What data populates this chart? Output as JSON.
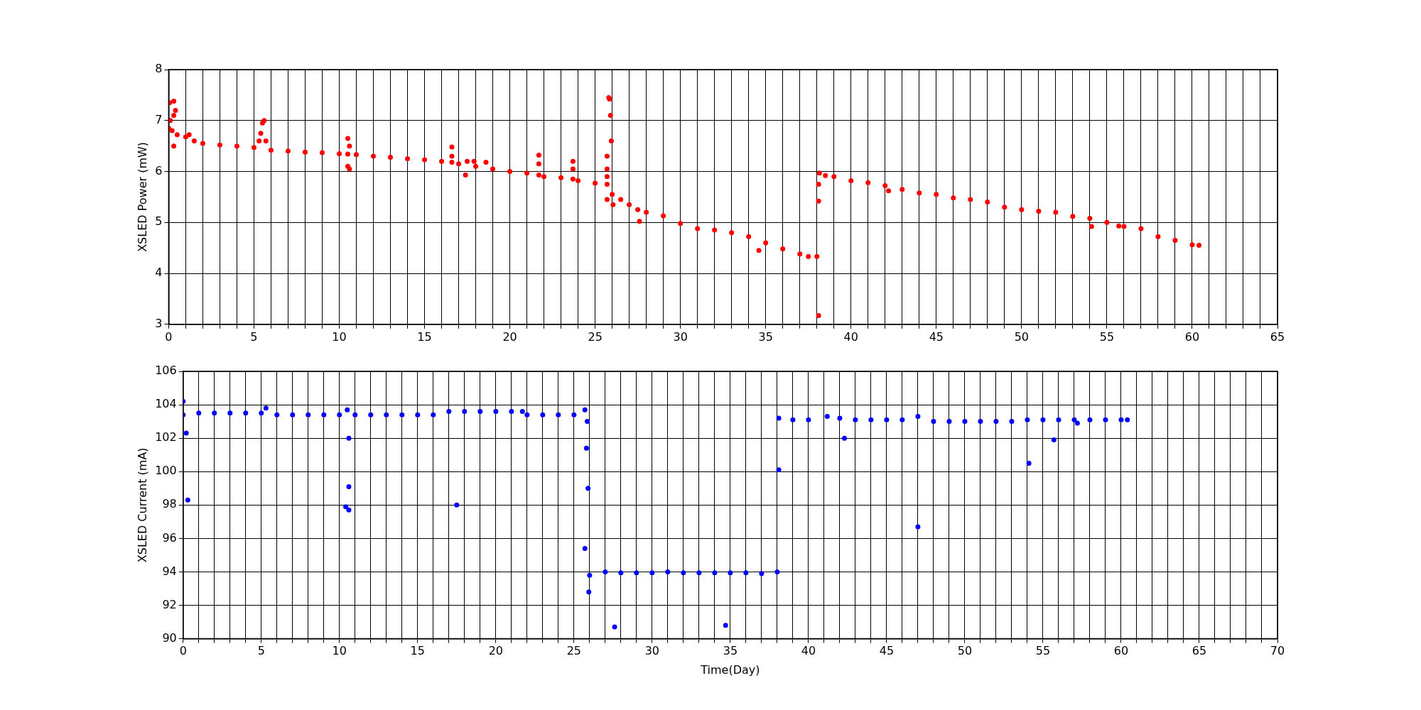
{
  "chart_data": [
    {
      "type": "scatter",
      "ylabel": "XSLED Power (mW)",
      "marker": "circle",
      "grid": true,
      "legend": false,
      "xlim": [
        0,
        65
      ],
      "ylim": [
        3,
        8
      ],
      "yticks": [
        3,
        4,
        5,
        6,
        7,
        8
      ],
      "xticks": [
        0,
        {
          "value": 1,
          "label": null
        },
        {
          "value": 2,
          "label": null
        },
        {
          "value": 3,
          "label": null
        },
        {
          "value": 4,
          "label": null
        },
        5,
        {
          "value": 6,
          "label": null
        },
        {
          "value": 7,
          "label": null
        },
        {
          "value": 8,
          "label": null
        },
        {
          "value": 9,
          "label": null
        },
        10,
        {
          "value": 11,
          "label": null
        },
        {
          "value": 12,
          "label": null
        },
        {
          "value": 13,
          "label": null
        },
        {
          "value": 14,
          "label": null
        },
        15,
        {
          "value": 16,
          "label": null
        },
        {
          "value": 17,
          "label": null
        },
        {
          "value": 18,
          "label": null
        },
        {
          "value": 19,
          "label": null
        },
        20,
        {
          "value": 21,
          "label": null
        },
        {
          "value": 22,
          "label": null
        },
        {
          "value": 23,
          "label": null
        },
        {
          "value": 24,
          "label": null
        },
        25,
        {
          "value": 26,
          "label": null
        },
        {
          "value": 27,
          "label": null
        },
        {
          "value": 28,
          "label": null
        },
        {
          "value": 29,
          "label": null
        },
        30,
        {
          "value": 31,
          "label": null
        },
        {
          "value": 32,
          "label": null
        },
        {
          "value": 33,
          "label": null
        },
        {
          "value": 34,
          "label": null
        },
        35,
        {
          "value": 36,
          "label": null
        },
        {
          "value": 37,
          "label": null
        },
        {
          "value": 38,
          "label": null
        },
        {
          "value": 39,
          "label": null
        },
        40,
        {
          "value": 41,
          "label": null
        },
        {
          "value": 42,
          "label": null
        },
        {
          "value": 43,
          "label": null
        },
        {
          "value": 44,
          "label": null
        },
        45,
        {
          "value": 46,
          "label": null
        },
        {
          "value": 47,
          "label": null
        },
        {
          "value": 48,
          "label": null
        },
        {
          "value": 49,
          "label": null
        },
        50,
        {
          "value": 51,
          "label": null
        },
        {
          "value": 52,
          "label": null
        },
        {
          "value": 53,
          "label": null
        },
        {
          "value": 54,
          "label": null
        },
        55,
        {
          "value": 56,
          "label": null
        },
        {
          "value": 57,
          "label": null
        },
        {
          "value": 58,
          "label": null
        },
        {
          "value": 59,
          "label": null
        },
        60,
        {
          "value": 61,
          "label": null
        },
        {
          "value": 62,
          "label": null
        },
        {
          "value": 63,
          "label": null
        },
        {
          "value": 64,
          "label": null
        },
        65
      ],
      "series": [
        {
          "color": "#ff0000",
          "x": [
            0,
            0.05,
            0.1,
            0.2,
            0.3,
            0.3,
            0.3,
            0.4,
            0.5,
            1,
            1.2,
            1.5,
            2,
            3,
            4,
            5,
            5.3,
            5.4,
            5.5,
            5.6,
            5.7,
            6,
            7,
            8,
            9,
            10,
            10.5,
            10.6,
            10.5,
            10.6,
            10.5,
            11,
            12,
            13,
            14,
            15,
            16,
            16.6,
            16.6,
            16.6,
            17,
            17.4,
            17.5,
            17.9,
            18,
            18.6,
            19,
            20,
            21,
            21.7,
            21.7,
            21.7,
            22,
            23,
            23.7,
            23.7,
            23.7,
            24,
            25,
            25.7,
            25.7,
            25.7,
            25.7,
            25.8,
            25.85,
            25.9,
            25.95,
            25.7,
            26,
            26.05,
            26.5,
            27,
            27.5,
            27.6,
            28,
            29,
            30,
            31,
            32,
            33,
            34,
            34.6,
            35,
            36,
            37,
            37.5,
            38,
            38.1,
            38.1,
            38.1,
            38.15,
            38.5,
            39,
            40,
            41,
            42,
            42.2,
            43,
            44,
            45,
            46,
            47,
            48,
            49,
            50,
            51,
            52,
            53,
            54,
            54.1,
            55,
            55.7,
            56,
            57,
            58,
            59,
            60,
            60.4
          ],
          "values": [
            6.85,
            7.35,
            7.0,
            6.8,
            7.38,
            7.1,
            6.5,
            7.2,
            6.72,
            6.68,
            6.72,
            6.6,
            6.55,
            6.52,
            6.5,
            6.47,
            6.6,
            6.75,
            6.95,
            7.0,
            6.6,
            6.42,
            6.4,
            6.38,
            6.37,
            6.35,
            6.34,
            6.5,
            6.65,
            6.05,
            6.1,
            6.33,
            6.3,
            6.28,
            6.25,
            6.23,
            6.2,
            6.18,
            6.48,
            6.3,
            6.15,
            5.93,
            6.2,
            6.2,
            6.1,
            6.18,
            6.05,
            6.0,
            5.97,
            5.93,
            6.32,
            6.15,
            5.9,
            5.88,
            5.85,
            6.2,
            6.05,
            5.82,
            5.77,
            5.75,
            6.3,
            6.05,
            5.9,
            7.45,
            7.42,
            7.1,
            6.6,
            5.45,
            5.55,
            5.35,
            5.45,
            5.35,
            5.25,
            5.02,
            5.2,
            5.13,
            4.98,
            4.88,
            4.85,
            4.8,
            4.72,
            4.45,
            4.6,
            4.48,
            4.38,
            4.33,
            4.33,
            3.17,
            5.42,
            5.75,
            5.97,
            5.92,
            5.9,
            5.82,
            5.78,
            5.72,
            5.62,
            5.65,
            5.58,
            5.55,
            5.48,
            5.45,
            5.4,
            5.3,
            5.25,
            5.22,
            5.2,
            5.12,
            5.08,
            4.92,
            5.0,
            4.93,
            4.92,
            4.88,
            4.72,
            4.65,
            4.56,
            4.55
          ]
        }
      ]
    },
    {
      "type": "scatter",
      "ylabel": "XSLED Current (mA)",
      "xlabel": "Time(Day)",
      "marker": "circle",
      "grid": true,
      "legend": false,
      "xlim": [
        0,
        70
      ],
      "ylim": [
        90,
        106
      ],
      "yticks": [
        90,
        92,
        94,
        96,
        98,
        100,
        102,
        104,
        106
      ],
      "xticks": [
        0,
        {
          "value": 1,
          "label": null
        },
        {
          "value": 2,
          "label": null
        },
        {
          "value": 3,
          "label": null
        },
        {
          "value": 4,
          "label": null
        },
        5,
        {
          "value": 6,
          "label": null
        },
        {
          "value": 7,
          "label": null
        },
        {
          "value": 8,
          "label": null
        },
        {
          "value": 9,
          "label": null
        },
        10,
        {
          "value": 11,
          "label": null
        },
        {
          "value": 12,
          "label": null
        },
        {
          "value": 13,
          "label": null
        },
        {
          "value": 14,
          "label": null
        },
        15,
        {
          "value": 16,
          "label": null
        },
        {
          "value": 17,
          "label": null
        },
        {
          "value": 18,
          "label": null
        },
        {
          "value": 19,
          "label": null
        },
        20,
        {
          "value": 21,
          "label": null
        },
        {
          "value": 22,
          "label": null
        },
        {
          "value": 23,
          "label": null
        },
        {
          "value": 24,
          "label": null
        },
        25,
        {
          "value": 26,
          "label": null
        },
        {
          "value": 27,
          "label": null
        },
        {
          "value": 28,
          "label": null
        },
        {
          "value": 29,
          "label": null
        },
        30,
        {
          "value": 31,
          "label": null
        },
        {
          "value": 32,
          "label": null
        },
        {
          "value": 33,
          "label": null
        },
        {
          "value": 34,
          "label": null
        },
        35,
        {
          "value": 36,
          "label": null
        },
        {
          "value": 37,
          "label": null
        },
        {
          "value": 38,
          "label": null
        },
        {
          "value": 39,
          "label": null
        },
        40,
        {
          "value": 41,
          "label": null
        },
        {
          "value": 42,
          "label": null
        },
        {
          "value": 43,
          "label": null
        },
        {
          "value": 44,
          "label": null
        },
        45,
        {
          "value": 46,
          "label": null
        },
        {
          "value": 47,
          "label": null
        },
        {
          "value": 48,
          "label": null
        },
        {
          "value": 49,
          "label": null
        },
        50,
        {
          "value": 51,
          "label": null
        },
        {
          "value": 52,
          "label": null
        },
        {
          "value": 53,
          "label": null
        },
        {
          "value": 54,
          "label": null
        },
        55,
        {
          "value": 56,
          "label": null
        },
        {
          "value": 57,
          "label": null
        },
        {
          "value": 58,
          "label": null
        },
        {
          "value": 59,
          "label": null
        },
        60,
        {
          "value": 61,
          "label": null
        },
        {
          "value": 62,
          "label": null
        },
        {
          "value": 63,
          "label": null
        },
        {
          "value": 64,
          "label": null
        },
        65,
        {
          "value": 66,
          "label": null
        },
        {
          "value": 67,
          "label": null
        },
        {
          "value": 68,
          "label": null
        },
        {
          "value": 69,
          "label": null
        },
        70
      ],
      "series": [
        {
          "color": "#0000ff",
          "x": [
            0,
            0,
            0.2,
            0.3,
            1,
            2,
            3,
            4,
            5,
            5.3,
            6,
            7,
            8,
            9,
            10,
            10.5,
            10.6,
            10.6,
            10.4,
            10.6,
            11,
            12,
            13,
            14,
            15,
            16,
            17,
            17.5,
            18,
            19,
            20,
            21,
            21.7,
            22,
            23,
            24,
            25,
            25.7,
            25.85,
            25.8,
            25.9,
            25.7,
            25.95,
            26,
            27,
            27.6,
            28,
            29,
            30,
            31,
            32,
            33,
            34,
            34.7,
            35,
            36,
            37,
            38,
            38.1,
            38.1,
            39,
            40,
            41.2,
            42,
            42.3,
            43,
            44,
            45,
            46,
            47,
            47,
            48,
            49,
            50,
            51,
            52,
            53,
            54,
            54.1,
            55,
            55.7,
            56,
            57,
            57.2,
            58,
            59,
            60,
            60.4
          ],
          "values": [
            103.4,
            104.2,
            102.3,
            98.3,
            103.5,
            103.5,
            103.5,
            103.5,
            103.5,
            103.8,
            103.4,
            103.4,
            103.4,
            103.4,
            103.4,
            103.7,
            102.0,
            99.1,
            97.9,
            97.7,
            103.4,
            103.4,
            103.4,
            103.4,
            103.4,
            103.4,
            103.6,
            98.0,
            103.6,
            103.6,
            103.6,
            103.6,
            103.6,
            103.4,
            103.4,
            103.4,
            103.4,
            103.7,
            103.0,
            101.4,
            99.0,
            95.4,
            92.8,
            93.8,
            94.0,
            90.7,
            93.95,
            93.95,
            93.95,
            94.0,
            93.95,
            93.95,
            93.95,
            90.8,
            93.95,
            93.95,
            93.9,
            94.0,
            100.1,
            103.2,
            103.1,
            103.1,
            103.3,
            103.2,
            102.0,
            103.1,
            103.1,
            103.1,
            103.1,
            103.3,
            96.7,
            103.0,
            103.0,
            103.0,
            103.0,
            103.0,
            103.0,
            103.1,
            100.5,
            103.1,
            101.9,
            103.1,
            103.1,
            102.9,
            103.1,
            103.1,
            103.1,
            103.1
          ]
        }
      ]
    }
  ]
}
